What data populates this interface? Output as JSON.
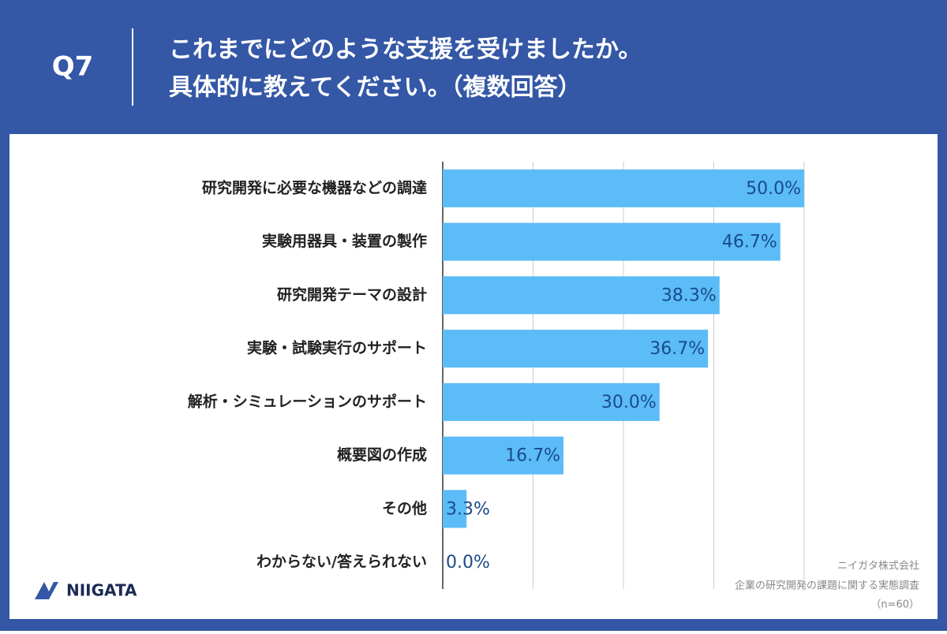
{
  "chart_data": {
    "type": "bar",
    "orientation": "horizontal",
    "question": "Q7",
    "title_lines": [
      "これまでにどのような支援を受けましたか。",
      "具体的に教えてください。（複数回答）"
    ],
    "categories": [
      "研究開発に必要な機器などの調達",
      "実験用器具・装置の製作",
      "研究開発テーマの設計",
      "実験・試験実行のサポート",
      "解析・シミュレーションのサポート",
      "概要図の作成",
      "その他",
      "わからない/答えられない"
    ],
    "values": [
      50.0,
      46.7,
      38.3,
      36.7,
      30.0,
      16.7,
      3.3,
      0.0
    ],
    "value_labels": [
      "50.0%",
      "46.7%",
      "38.3%",
      "36.7%",
      "30.0%",
      "16.7%",
      "3.3%",
      "0.0%"
    ],
    "color": "#5bbcf7",
    "xlim": [
      0,
      50
    ],
    "xticks": [
      0,
      12.5,
      25,
      37.5,
      50
    ],
    "grid": true,
    "source_lines": [
      "ニイガタ株式会社",
      "企業の研究開発の課題に関する実態調査",
      "（n=60）"
    ],
    "logo": "NIIGATA"
  }
}
